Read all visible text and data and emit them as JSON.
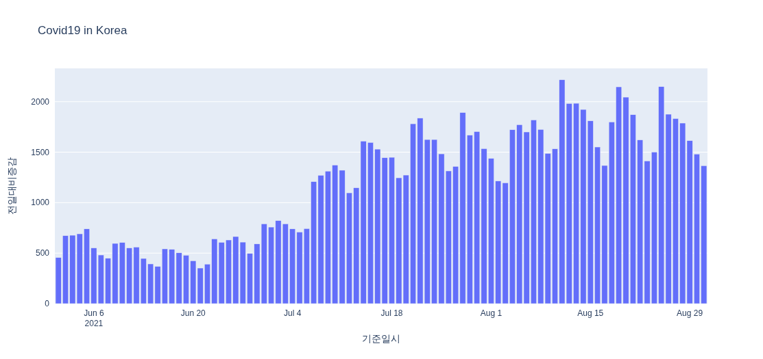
{
  "chart_data": {
    "type": "bar",
    "title": "Covid19 in Korea",
    "xlabel": "기준일시",
    "ylabel": "전일대비증감",
    "color": "#636efa",
    "grid": "y",
    "x": [
      "2021-06-01",
      "2021-06-02",
      "2021-06-03",
      "2021-06-04",
      "2021-06-05",
      "2021-06-06",
      "2021-06-07",
      "2021-06-08",
      "2021-06-09",
      "2021-06-10",
      "2021-06-11",
      "2021-06-12",
      "2021-06-13",
      "2021-06-14",
      "2021-06-15",
      "2021-06-16",
      "2021-06-17",
      "2021-06-18",
      "2021-06-19",
      "2021-06-20",
      "2021-06-21",
      "2021-06-22",
      "2021-06-23",
      "2021-06-24",
      "2021-06-25",
      "2021-06-26",
      "2021-06-27",
      "2021-06-28",
      "2021-06-29",
      "2021-06-30",
      "2021-07-01",
      "2021-07-02",
      "2021-07-03",
      "2021-07-04",
      "2021-07-05",
      "2021-07-06",
      "2021-07-07",
      "2021-07-08",
      "2021-07-09",
      "2021-07-10",
      "2021-07-11",
      "2021-07-12",
      "2021-07-13",
      "2021-07-14",
      "2021-07-15",
      "2021-07-16",
      "2021-07-17",
      "2021-07-18",
      "2021-07-19",
      "2021-07-20",
      "2021-07-21",
      "2021-07-22",
      "2021-07-23",
      "2021-07-24",
      "2021-07-25",
      "2021-07-26",
      "2021-07-27",
      "2021-07-28",
      "2021-07-29",
      "2021-07-30",
      "2021-07-31",
      "2021-08-01",
      "2021-08-02",
      "2021-08-03",
      "2021-08-04",
      "2021-08-05",
      "2021-08-06",
      "2021-08-07",
      "2021-08-08",
      "2021-08-09",
      "2021-08-10",
      "2021-08-11",
      "2021-08-12",
      "2021-08-13",
      "2021-08-14",
      "2021-08-15",
      "2021-08-16",
      "2021-08-17",
      "2021-08-18",
      "2021-08-19",
      "2021-08-20",
      "2021-08-21",
      "2021-08-22",
      "2021-08-23",
      "2021-08-24",
      "2021-08-25",
      "2021-08-26",
      "2021-08-27",
      "2021-08-28",
      "2021-08-29",
      "2021-08-30",
      "2021-08-31"
    ],
    "values": [
      456,
      673,
      677,
      691,
      740,
      551,
      481,
      449,
      596,
      605,
      551,
      560,
      447,
      393,
      368,
      542,
      537,
      503,
      479,
      424,
      352,
      391,
      641,
      607,
      630,
      664,
      609,
      497,
      591,
      790,
      758,
      822,
      790,
      740,
      709,
      743,
      1208,
      1271,
      1312,
      1372,
      1321,
      1097,
      1147,
      1609,
      1596,
      1530,
      1445,
      1449,
      1246,
      1273,
      1781,
      1837,
      1625,
      1625,
      1483,
      1314,
      1359,
      1892,
      1668,
      1704,
      1535,
      1438,
      1214,
      1196,
      1722,
      1772,
      1700,
      1819,
      1725,
      1488,
      1533,
      2217,
      1982,
      1984,
      1923,
      1810,
      1551,
      1368,
      1799,
      2147,
      2045,
      1871,
      1621,
      1413,
      1501,
      2149,
      1876,
      1833,
      1788,
      1614,
      1481,
      1366
    ],
    "xlim": [
      "2021-05-31T12:00",
      "2021-08-31T12:00"
    ],
    "xticks": [
      {
        "value": "2021-06-06",
        "label": "Jun 6\n2021"
      },
      {
        "value": "2021-06-20",
        "label": "Jun 20"
      },
      {
        "value": "2021-07-04",
        "label": "Jul 4"
      },
      {
        "value": "2021-07-18",
        "label": "Jul 18"
      },
      {
        "value": "2021-08-01",
        "label": "Aug 1"
      },
      {
        "value": "2021-08-15",
        "label": "Aug 15"
      },
      {
        "value": "2021-08-29",
        "label": "Aug 29"
      }
    ],
    "ylim": [
      0,
      2330
    ],
    "yticks": [
      0,
      500,
      1000,
      1500,
      2000
    ]
  }
}
